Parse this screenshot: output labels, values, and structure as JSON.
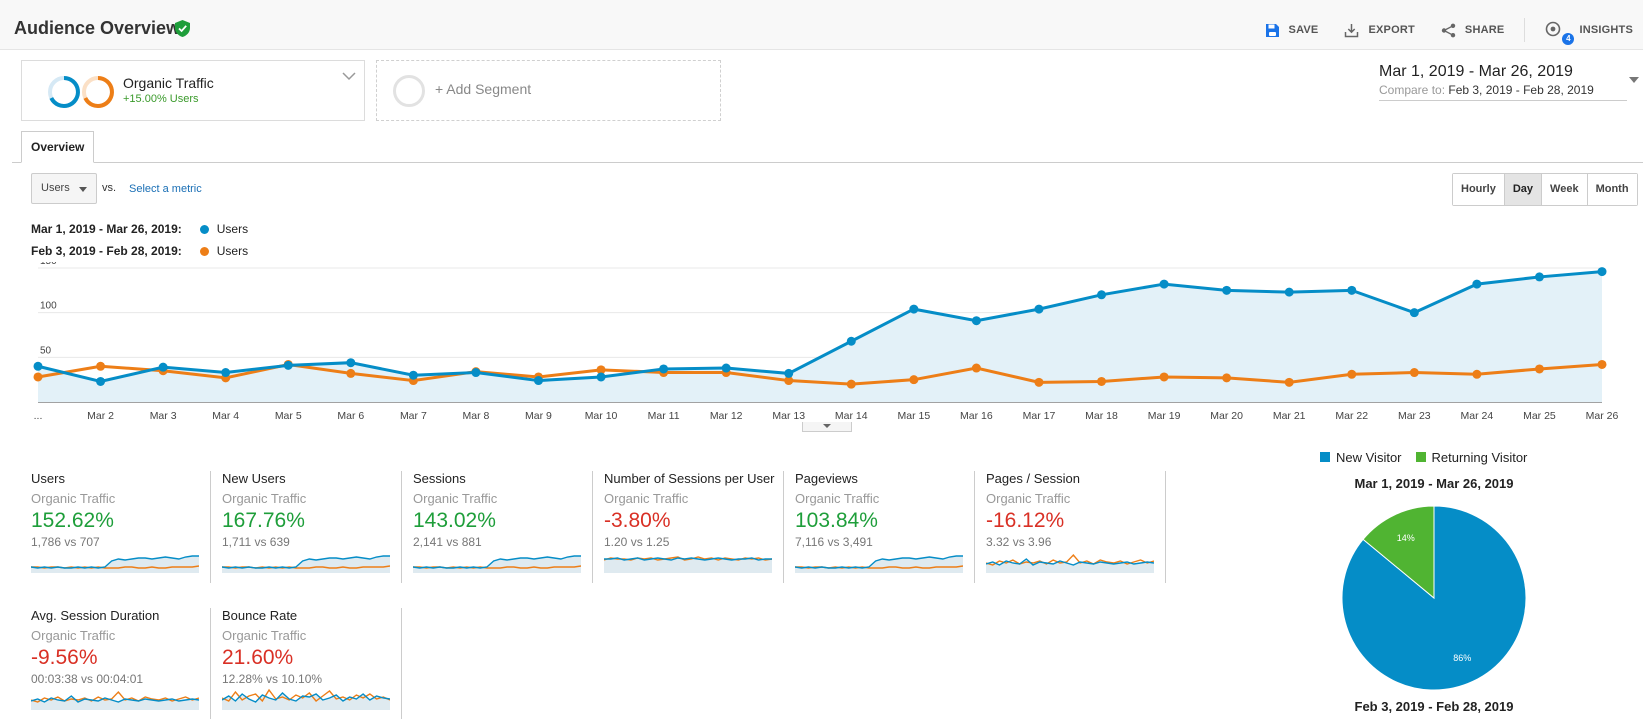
{
  "header": {
    "title": "Audience Overview",
    "actions": [
      {
        "label": "SAVE",
        "icon": "save-icon"
      },
      {
        "label": "EXPORT",
        "icon": "export-icon"
      },
      {
        "label": "SHARE",
        "icon": "share-icon"
      },
      {
        "label": "INSIGHTS",
        "icon": "insights-icon",
        "badge": "4"
      }
    ]
  },
  "segments": {
    "active": {
      "name": "Organic Traffic",
      "sub": "+15.00% Users"
    },
    "add_label": "+ Add Segment"
  },
  "date_range": {
    "main": "Mar 1, 2019 - Mar 26, 2019",
    "compare_label": "Compare to:",
    "compare": "Feb 3, 2019 - Feb 28, 2019"
  },
  "tabs": {
    "overview": "Overview"
  },
  "controls": {
    "metric": "Users",
    "vs": "vs.",
    "select_metric": "Select a metric",
    "granularity": [
      "Hourly",
      "Day",
      "Week",
      "Month"
    ],
    "granularity_active": "Day"
  },
  "chart_legend": [
    {
      "range": "Mar 1, 2019 - Mar 26, 2019:",
      "series": "Users",
      "color": "#058dc7"
    },
    {
      "range": "Feb 3, 2019 - Feb 28, 2019:",
      "series": "Users",
      "color": "#ed7e17"
    }
  ],
  "chart_data": {
    "type": "line",
    "x": [
      "...",
      "Mar 2",
      "Mar 3",
      "Mar 4",
      "Mar 5",
      "Mar 6",
      "Mar 7",
      "Mar 8",
      "Mar 9",
      "Mar 10",
      "Mar 11",
      "Mar 12",
      "Mar 13",
      "Mar 14",
      "Mar 15",
      "Mar 16",
      "Mar 17",
      "Mar 18",
      "Mar 19",
      "Mar 20",
      "Mar 21",
      "Mar 22",
      "Mar 23",
      "Mar 24",
      "Mar 25",
      "Mar 26"
    ],
    "series": [
      {
        "name": "Users",
        "range": "Mar 1, 2019 - Mar 26, 2019",
        "color": "#058dc7",
        "values": [
          40,
          23,
          39,
          33,
          41,
          44,
          30,
          33,
          24,
          28,
          37,
          38,
          32,
          68,
          104,
          91,
          104,
          120,
          132,
          125,
          123,
          125,
          100,
          132,
          140,
          146
        ]
      },
      {
        "name": "Users",
        "range": "Feb 3, 2019 - Feb 28, 2019",
        "color": "#ed7e17",
        "values": [
          28,
          40,
          35,
          27,
          42,
          32,
          24,
          34,
          28,
          36,
          33,
          33,
          24,
          20,
          25,
          38,
          22,
          23,
          28,
          27,
          22,
          31,
          33,
          31,
          37,
          42
        ]
      }
    ],
    "yticks": [
      50,
      100,
      150
    ],
    "ylim": [
      0,
      150
    ],
    "grid": true
  },
  "scorecards": [
    {
      "title": "Users",
      "segment": "Organic Traffic",
      "change": "152.62%",
      "sign": "pos",
      "compare": "1,786 vs 707",
      "shape": "rise"
    },
    {
      "title": "New Users",
      "segment": "Organic Traffic",
      "change": "167.76%",
      "sign": "pos",
      "compare": "1,711 vs 639",
      "shape": "rise"
    },
    {
      "title": "Sessions",
      "segment": "Organic Traffic",
      "change": "143.02%",
      "sign": "pos",
      "compare": "2,141 vs 881",
      "shape": "rise"
    },
    {
      "title": "Number of Sessions per User",
      "segment": "Organic Traffic",
      "change": "-3.80%",
      "sign": "neg",
      "compare": "1.20 vs 1.25",
      "shape": "flat"
    },
    {
      "title": "Pageviews",
      "segment": "Organic Traffic",
      "change": "103.84%",
      "sign": "pos",
      "compare": "7,116 vs 3,491",
      "shape": "rise"
    },
    {
      "title": "Pages / Session",
      "segment": "Organic Traffic",
      "change": "-16.12%",
      "sign": "neg",
      "compare": "3.32 vs 3.96",
      "shape": "wobble"
    },
    {
      "title": "Avg. Session Duration",
      "segment": "Organic Traffic",
      "change": "-9.56%",
      "sign": "neg",
      "compare": "00:03:38 vs 00:04:01",
      "shape": "wobble"
    },
    {
      "title": "Bounce Rate",
      "segment": "Organic Traffic",
      "change": "21.60%",
      "sign": "neg",
      "compare": "12.28% vs 10.10%",
      "shape": "noisy"
    }
  ],
  "pie": {
    "legend": [
      {
        "label": "New Visitor",
        "color": "#058dc7"
      },
      {
        "label": "Returning Visitor",
        "color": "#50b432"
      }
    ],
    "title_top": "Mar 1, 2019 - Mar 26, 2019",
    "title_bottom": "Feb 3, 2019 - Feb 28, 2019",
    "slices": [
      {
        "label": "86%",
        "value": 86,
        "color": "#058dc7"
      },
      {
        "label": "14%",
        "value": 14,
        "color": "#50b432"
      }
    ]
  }
}
